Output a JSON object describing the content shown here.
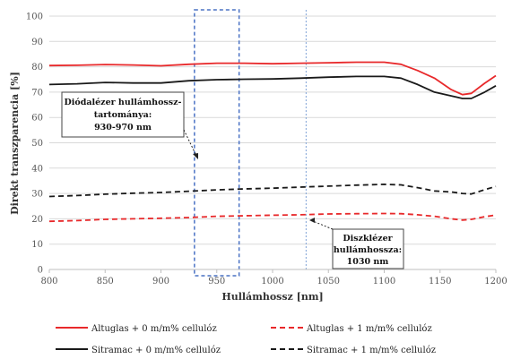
{
  "chart_data": {
    "type": "line",
    "xlabel": "Hullámhossz  [nm]",
    "ylabel": "Direkt transzparencia  [%]",
    "xlim": [
      800,
      1200
    ],
    "ylim": [
      0,
      100
    ],
    "xticks": [
      800,
      850,
      900,
      950,
      1000,
      1050,
      1100,
      1150,
      1200
    ],
    "yticks": [
      0,
      10,
      20,
      30,
      40,
      50,
      60,
      70,
      80,
      90,
      100
    ],
    "grid": "horizontal",
    "legend": "bottom",
    "x": [
      800,
      825,
      850,
      875,
      900,
      925,
      950,
      975,
      1000,
      1025,
      1050,
      1075,
      1100,
      1115,
      1130,
      1145,
      1160,
      1170,
      1178,
      1190,
      1200
    ],
    "series": [
      {
        "name": "Altuglas + 0 m/m% cellulóz",
        "color": "#e8292b",
        "dash": "solid",
        "values": [
          80.5,
          80.6,
          80.9,
          80.7,
          80.4,
          81.0,
          81.4,
          81.4,
          81.2,
          81.4,
          81.6,
          81.8,
          81.8,
          81.0,
          78.5,
          75.5,
          71.0,
          69.0,
          69.5,
          73.5,
          76.5
        ]
      },
      {
        "name": "Altuglas + 1 m/m% cellulóz",
        "color": "#e8292b",
        "dash": "dashed",
        "values": [
          19.0,
          19.3,
          19.8,
          20.0,
          20.2,
          20.5,
          21.0,
          21.2,
          21.4,
          21.6,
          21.9,
          22.0,
          22.1,
          22.0,
          21.6,
          21.0,
          20.0,
          19.5,
          19.8,
          20.8,
          21.5
        ]
      },
      {
        "name": "Sitramac + 0 m/m% cellulóz",
        "color": "#1a1a1a",
        "dash": "solid",
        "values": [
          73.0,
          73.3,
          73.8,
          73.6,
          73.6,
          74.5,
          74.9,
          75.1,
          75.2,
          75.5,
          75.9,
          76.2,
          76.2,
          75.5,
          73.0,
          70.0,
          68.5,
          67.5,
          67.5,
          70.0,
          72.5
        ]
      },
      {
        "name": "Sitramac + 1 m/m% cellulóz",
        "color": "#1a1a1a",
        "dash": "dashed",
        "values": [
          28.8,
          29.2,
          29.7,
          30.1,
          30.4,
          30.9,
          31.4,
          31.8,
          32.1,
          32.5,
          32.9,
          33.3,
          33.6,
          33.4,
          32.3,
          31.0,
          30.6,
          30.0,
          29.8,
          31.5,
          32.8
        ]
      }
    ],
    "annotations": [
      {
        "id": "diode",
        "lines": [
          "Diódalézer hullámhossz-",
          "tartománya:",
          "930-970 nm"
        ],
        "band": [
          930,
          970
        ],
        "band_color": "#4a72c4"
      },
      {
        "id": "disk",
        "lines": [
          "Diszklézer",
          "hullámhossza:",
          "1030 nm"
        ],
        "line_x": 1030,
        "line_color": "#7fa3d6"
      }
    ]
  }
}
